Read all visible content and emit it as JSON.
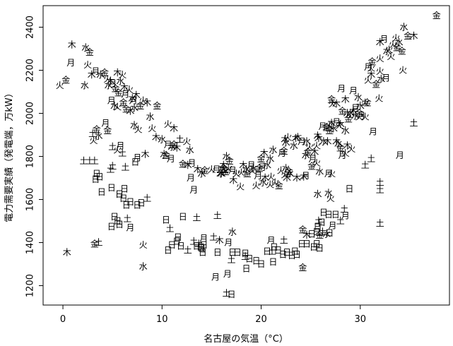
{
  "chart_data": {
    "type": "scatter",
    "title": "",
    "xlabel": "名古屋の気温（°C）",
    "ylabel": "電力需要実績（発電端，万kW）",
    "xlim": [
      -2,
      39
    ],
    "ylim": [
      1110,
      2500
    ],
    "x_ticks": [
      0,
      10,
      20,
      30
    ],
    "y_ticks": [
      1200,
      1400,
      1600,
      1800,
      2000,
      2200,
      2400
    ],
    "x_tick_labels": [
      "0",
      "10",
      "20",
      "30"
    ],
    "y_tick_labels": [
      "1200",
      "1400",
      "1600",
      "1800",
      "2000",
      "2200",
      "2400"
    ],
    "marker": "weekday character",
    "grid": false,
    "legend": "none",
    "points": [
      [
        "金",
        0.3,
        2155
      ],
      [
        "火",
        -0.3,
        2130
      ],
      [
        "月",
        0.8,
        2235
      ],
      [
        "水",
        2.2,
        2130
      ],
      [
        "木",
        0.4,
        1355
      ],
      [
        "木",
        0.9,
        2318
      ],
      [
        "水",
        2.3,
        2305
      ],
      [
        "金",
        2.7,
        2285
      ],
      [
        "火",
        2.5,
        2225
      ],
      [
        "木",
        2.9,
        2180
      ],
      [
        "月",
        3.3,
        2195
      ],
      [
        "水",
        3.8,
        2180
      ],
      [
        "金",
        4.2,
        2190
      ],
      [
        "火",
        4.5,
        2160
      ],
      [
        "木",
        4.8,
        2150
      ],
      [
        "水",
        4.6,
        2130
      ],
      [
        "月",
        5.0,
        2140
      ],
      [
        "金",
        5.3,
        2115
      ],
      [
        "木",
        5.5,
        2190
      ],
      [
        "水",
        5.8,
        2150
      ],
      [
        "火",
        6.0,
        2180
      ],
      [
        "金",
        5.6,
        2095
      ],
      [
        "木",
        6.2,
        2120
      ],
      [
        "月",
        4.9,
        2060
      ],
      [
        "水",
        5.2,
        2035
      ],
      [
        "火",
        5.5,
        2030
      ],
      [
        "金",
        6.4,
        2020
      ],
      [
        "木",
        6.8,
        2010
      ],
      [
        "水",
        7.2,
        2025
      ],
      [
        "月",
        7.1,
        2060
      ],
      [
        "金",
        7.8,
        2035
      ],
      [
        "火",
        8.1,
        2060
      ],
      [
        "木",
        8.5,
        2050
      ],
      [
        "水",
        8.8,
        1985
      ],
      [
        "金",
        9.5,
        2035
      ],
      [
        "月",
        6.3,
        2090
      ],
      [
        "火",
        6.7,
        2110
      ],
      [
        "水",
        7.0,
        2070
      ],
      [
        "木",
        7.4,
        2085
      ],
      [
        "金",
        6.1,
        2050
      ],
      [
        "月",
        4.3,
        1955
      ],
      [
        "金",
        4.5,
        1920
      ],
      [
        "水",
        3.6,
        1895
      ],
      [
        "土",
        3.0,
        1905
      ],
      [
        "金",
        3.4,
        1925
      ],
      [
        "火",
        3.1,
        1875
      ],
      [
        "土",
        5.0,
        1845
      ],
      [
        "月",
        5.8,
        1850
      ],
      [
        "土",
        6.0,
        1815
      ],
      [
        "火",
        5.5,
        1830
      ],
      [
        "水",
        7.2,
        1945
      ],
      [
        "火",
        7.6,
        1925
      ],
      [
        "木",
        8.3,
        1810
      ],
      [
        "火",
        9.0,
        1930
      ],
      [
        "木",
        9.4,
        1890
      ],
      [
        "水",
        10.0,
        1880
      ],
      [
        "月",
        10.6,
        1855
      ],
      [
        "火",
        10.6,
        1950
      ],
      [
        "木",
        11.2,
        1930
      ],
      [
        "水",
        11.0,
        1845
      ],
      [
        "金",
        11.2,
        1855
      ],
      [
        "木",
        11.5,
        1840
      ],
      [
        "土",
        11.8,
        1880
      ],
      [
        "水",
        10.2,
        1810
      ],
      [
        "金",
        10.4,
        1805
      ],
      [
        "月",
        10.9,
        1790
      ],
      [
        "火",
        12.5,
        1870
      ],
      [
        "水",
        12.8,
        1830
      ],
      [
        "金",
        12.1,
        1765
      ],
      [
        "木",
        12.6,
        1760
      ],
      [
        "月",
        13.0,
        1770
      ],
      [
        "木",
        13.6,
        1740
      ],
      [
        "水",
        14.0,
        1720
      ],
      [
        "金",
        14.3,
        1735
      ],
      [
        "火",
        15.0,
        1740
      ],
      [
        "月",
        12.9,
        1700
      ],
      [
        "月",
        13.2,
        1645
      ],
      [
        "月",
        15.5,
        1740
      ],
      [
        "木",
        15.9,
        1720
      ],
      [
        "水",
        16.1,
        1745
      ],
      [
        "金",
        16.4,
        1730
      ],
      [
        "火",
        16.7,
        1745
      ],
      [
        "木",
        16.2,
        1760
      ],
      [
        "水",
        16.5,
        1800
      ],
      [
        "金",
        16.8,
        1780
      ],
      [
        "月",
        17.1,
        1735
      ],
      [
        "火",
        17.5,
        1720
      ],
      [
        "木",
        17.2,
        1690
      ],
      [
        "水",
        16.0,
        1720
      ],
      [
        "金",
        16.3,
        1740
      ],
      [
        "火",
        18.0,
        1725
      ],
      [
        "水",
        18.5,
        1740
      ],
      [
        "金",
        18.6,
        1720
      ],
      [
        "火",
        19.1,
        1735
      ],
      [
        "木",
        18.2,
        1760
      ],
      [
        "月",
        19.0,
        1760
      ],
      [
        "火",
        17.9,
        1660
      ],
      [
        "火",
        19.5,
        1665
      ],
      [
        "水",
        20.2,
        1680
      ],
      [
        "月",
        19.7,
        1710
      ],
      [
        "木",
        20.4,
        1700
      ],
      [
        "火",
        21.0,
        1705
      ],
      [
        "月",
        20.1,
        1750
      ],
      [
        "水",
        20.6,
        1760
      ],
      [
        "金",
        20.0,
        1790
      ],
      [
        "金",
        19.8,
        1745
      ],
      [
        "水",
        19.2,
        1745
      ],
      [
        "火",
        20.9,
        1670
      ],
      [
        "火",
        21.4,
        1680
      ],
      [
        "金",
        21.8,
        1665
      ],
      [
        "木",
        22.6,
        1700
      ],
      [
        "火",
        22.0,
        1735
      ],
      [
        "水",
        22.5,
        1745
      ],
      [
        "金",
        22.8,
        1730
      ],
      [
        "火",
        22.4,
        1715
      ],
      [
        "水",
        22.9,
        1720
      ],
      [
        "水",
        20.9,
        1790
      ],
      [
        "木",
        20.3,
        1815
      ],
      [
        "水",
        21.2,
        1830
      ],
      [
        "木",
        22.4,
        1880
      ],
      [
        "月",
        22.1,
        1815
      ],
      [
        "金",
        22.3,
        1825
      ],
      [
        "水",
        22.5,
        1865
      ],
      [
        "火",
        22.7,
        1890
      ],
      [
        "水",
        23.3,
        1850
      ],
      [
        "木",
        23.7,
        1890
      ],
      [
        "月",
        24.1,
        1870
      ],
      [
        "水",
        24.6,
        1870
      ],
      [
        "金",
        24.7,
        1820
      ],
      [
        "火",
        24.9,
        1845
      ],
      [
        "木",
        25.4,
        1820
      ],
      [
        "水",
        24.5,
        1805
      ],
      [
        "月",
        25.2,
        1790
      ],
      [
        "火",
        25.6,
        1770
      ],
      [
        "水",
        25.9,
        1730
      ],
      [
        "金",
        25.1,
        1755
      ],
      [
        "木",
        25.7,
        1895
      ],
      [
        "火",
        25.6,
        1850
      ],
      [
        "水",
        26.3,
        1870
      ],
      [
        "金",
        26.9,
        1920
      ],
      [
        "月",
        26.8,
        1720
      ],
      [
        "火",
        27.1,
        1720
      ],
      [
        "水",
        25.7,
        1625
      ],
      [
        "月",
        24.5,
        1710
      ],
      [
        "木",
        23.6,
        1700
      ],
      [
        "木",
        24.3,
        1705
      ],
      [
        "木",
        23.5,
        1885
      ],
      [
        "木",
        25.8,
        1885
      ],
      [
        "木",
        26.7,
        1870
      ],
      [
        "水",
        27.8,
        1860
      ],
      [
        "月",
        28.2,
        1805
      ],
      [
        "火",
        28.5,
        1815
      ],
      [
        "木",
        28.7,
        1850
      ],
      [
        "金",
        28.0,
        1840
      ],
      [
        "火",
        29.1,
        1835
      ],
      [
        "木",
        27.6,
        1870
      ],
      [
        "月",
        26.2,
        1940
      ],
      [
        "金",
        26.6,
        1935
      ],
      [
        "火",
        26.9,
        1945
      ],
      [
        "水",
        27.3,
        1930
      ],
      [
        "木",
        27.1,
        1955
      ],
      [
        "月",
        27.6,
        1960
      ],
      [
        "火",
        27.9,
        1945
      ],
      [
        "水",
        28.5,
        1920
      ],
      [
        "金",
        28.8,
        1975
      ],
      [
        "水",
        29.5,
        1990
      ],
      [
        "火",
        29.9,
        1985
      ],
      [
        "月",
        30.1,
        1990
      ],
      [
        "水",
        29.0,
        2000
      ],
      [
        "木",
        29.3,
        2010
      ],
      [
        "金",
        29.9,
        2000
      ],
      [
        "火",
        30.5,
        1985
      ],
      [
        "月",
        31.3,
        1915
      ],
      [
        "木",
        28.0,
        1950
      ],
      [
        "水",
        28.7,
        2000
      ],
      [
        "金",
        28.2,
        2010
      ],
      [
        "月",
        29.5,
        2025
      ],
      [
        "水",
        30.0,
        2035
      ],
      [
        "火",
        30.5,
        2050
      ],
      [
        "金",
        30.7,
        2050
      ],
      [
        "木",
        27.6,
        2045
      ],
      [
        "火",
        27.2,
        2045
      ],
      [
        "金",
        27.1,
        2065
      ],
      [
        "木",
        28.5,
        2065
      ],
      [
        "月",
        28.1,
        2115
      ],
      [
        "月",
        29.3,
        2105
      ],
      [
        "水",
        29.8,
        2075
      ],
      [
        "火",
        31.9,
        2070
      ],
      [
        "火",
        30.8,
        2155
      ],
      [
        "金",
        31.6,
        2135
      ],
      [
        "木",
        31.1,
        2180
      ],
      [
        "水",
        32.1,
        2160
      ],
      [
        "火",
        31.1,
        2210
      ],
      [
        "火",
        32.0,
        2195
      ],
      [
        "月",
        30.8,
        2215
      ],
      [
        "金",
        31.2,
        2240
      ],
      [
        "月",
        32.6,
        2165
      ],
      [
        "火",
        32.0,
        2255
      ],
      [
        "火",
        32.9,
        2295
      ],
      [
        "木",
        32.0,
        2330
      ],
      [
        "火",
        33.3,
        2320
      ],
      [
        "水",
        33.9,
        2330
      ],
      [
        "水",
        32.7,
        2290
      ],
      [
        "火",
        33.1,
        2265
      ],
      [
        "金",
        33.7,
        2305
      ],
      [
        "月",
        32.4,
        2345
      ],
      [
        "金",
        34.2,
        2290
      ],
      [
        "金",
        34.8,
        2360
      ],
      [
        "水",
        34.4,
        2400
      ],
      [
        "木",
        35.4,
        2360
      ],
      [
        "火",
        33.6,
        2350
      ],
      [
        "火",
        34.3,
        2200
      ],
      [
        "土",
        35.4,
        1955
      ],
      [
        "金",
        37.7,
        2455
      ],
      [
        "月",
        34.0,
        1805
      ],
      [
        "土",
        32.0,
        1680
      ],
      [
        "土",
        32.0,
        1645
      ],
      [
        "土",
        32.0,
        1490
      ],
      [
        "土",
        31.1,
        1790
      ],
      [
        "土",
        30.5,
        1760
      ],
      [
        "日",
        28.9,
        1650
      ],
      [
        "土",
        28.4,
        1555
      ],
      [
        "月",
        28.5,
        1525
      ],
      [
        "土",
        28.0,
        1500
      ],
      [
        "日",
        27.5,
        1530
      ],
      [
        "日",
        26.8,
        1530
      ],
      [
        "月",
        27.2,
        1480
      ],
      [
        "日",
        26.3,
        1540
      ],
      [
        "土",
        25.8,
        1500
      ],
      [
        "日",
        26.1,
        1495
      ],
      [
        "日",
        25.7,
        1475
      ],
      [
        "水",
        26.8,
        1630
      ],
      [
        "火",
        27.0,
        1605
      ],
      [
        "日",
        26.9,
        1445
      ],
      [
        "水",
        26.6,
        1440
      ],
      [
        "土",
        26.2,
        1450
      ],
      [
        "金",
        25.9,
        1435
      ],
      [
        "日",
        25.6,
        1450
      ],
      [
        "日",
        25.1,
        1440
      ],
      [
        "日",
        25.6,
        1395
      ],
      [
        "日",
        25.3,
        1380
      ],
      [
        "日",
        25.9,
        1375
      ],
      [
        "木",
        24.6,
        1435
      ],
      [
        "日",
        24.6,
        1395
      ],
      [
        "日",
        24.1,
        1395
      ],
      [
        "金",
        24.2,
        1460
      ],
      [
        "日",
        23.4,
        1360
      ],
      [
        "日",
        23.6,
        1345
      ],
      [
        "日",
        23.1,
        1340
      ],
      [
        "金",
        24.2,
        1285
      ],
      [
        "日",
        22.6,
        1355
      ],
      [
        "日",
        22.2,
        1345
      ],
      [
        "土",
        22.3,
        1410
      ],
      [
        "月",
        21.0,
        1410
      ],
      [
        "日",
        21.3,
        1380
      ],
      [
        "日",
        21.7,
        1365
      ],
      [
        "土",
        21.1,
        1360
      ],
      [
        "日",
        20.6,
        1360
      ],
      [
        "日",
        21.2,
        1310
      ],
      [
        "日",
        20.0,
        1300
      ],
      [
        "日",
        19.5,
        1315
      ],
      [
        "日",
        18.8,
        1325
      ],
      [
        "日",
        18.4,
        1350
      ],
      [
        "土",
        18.4,
        1335
      ],
      [
        "日",
        18.5,
        1280
      ],
      [
        "日",
        17.6,
        1355
      ],
      [
        "日",
        17.1,
        1355
      ],
      [
        "土",
        17.0,
        1320
      ],
      [
        "月",
        16.7,
        1400
      ],
      [
        "水",
        17.1,
        1450
      ],
      [
        "木",
        15.8,
        1410
      ],
      [
        "土",
        15.2,
        1425
      ],
      [
        "土",
        15.6,
        1525
      ],
      [
        "月",
        14.2,
        1420
      ],
      [
        "日",
        14.2,
        1390
      ],
      [
        "日",
        14.0,
        1375
      ],
      [
        "日",
        14.1,
        1355
      ],
      [
        "日",
        13.9,
        1380
      ],
      [
        "日",
        13.5,
        1385
      ],
      [
        "土",
        13.7,
        1395
      ],
      [
        "土",
        13.2,
        1405
      ],
      [
        "土",
        13.5,
        1515
      ],
      [
        "日",
        15.6,
        1355
      ],
      [
        "土",
        12.6,
        1365
      ],
      [
        "日",
        11.9,
        1385
      ],
      [
        "日",
        11.6,
        1425
      ],
      [
        "日",
        11.5,
        1405
      ],
      [
        "日",
        11.0,
        1390
      ],
      [
        "日",
        10.6,
        1365
      ],
      [
        "日",
        10.4,
        1505
      ],
      [
        "土",
        10.8,
        1465
      ],
      [
        "日",
        12.1,
        1520
      ],
      [
        "月",
        16.6,
        1255
      ],
      [
        "月",
        15.4,
        1240
      ],
      [
        "土",
        16.5,
        1165
      ],
      [
        "日",
        17.0,
        1160
      ],
      [
        "水",
        8.1,
        1290
      ],
      [
        "火",
        8.1,
        1390
      ],
      [
        "月",
        6.8,
        1470
      ],
      [
        "日",
        5.7,
        1485
      ],
      [
        "日",
        5.5,
        1500
      ],
      [
        "日",
        4.9,
        1475
      ],
      [
        "土",
        6.5,
        1510
      ],
      [
        "日",
        5.2,
        1520
      ],
      [
        "土",
        3.6,
        1400
      ],
      [
        "金",
        3.2,
        1395
      ],
      [
        "日",
        6.4,
        1575
      ],
      [
        "日",
        7.5,
        1575
      ],
      [
        "日",
        6.8,
        1590
      ],
      [
        "日",
        6.1,
        1605
      ],
      [
        "日",
        5.7,
        1625
      ],
      [
        "日",
        6.2,
        1650
      ],
      [
        "日",
        4.9,
        1655
      ],
      [
        "日",
        3.9,
        1635
      ],
      [
        "日",
        3.4,
        1720
      ],
      [
        "日",
        3.3,
        1695
      ],
      [
        "日",
        3.7,
        1705
      ],
      [
        "土",
        4.8,
        1740
      ],
      [
        "土",
        5.0,
        1755
      ],
      [
        "土",
        2.1,
        1780
      ],
      [
        "土",
        2.7,
        1780
      ],
      [
        "土",
        3.2,
        1780
      ],
      [
        "土",
        6.3,
        1750
      ],
      [
        "月",
        7.5,
        1795
      ],
      [
        "日",
        7.3,
        1775
      ],
      [
        "土",
        8.5,
        1605
      ],
      [
        "日",
        7.9,
        1585
      ],
      [
        "日",
        5.7,
        1625
      ]
    ]
  }
}
